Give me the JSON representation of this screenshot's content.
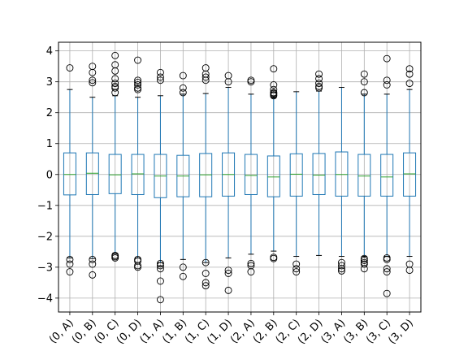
{
  "chart_data": {
    "type": "box",
    "title": "",
    "xlabel": "",
    "ylabel": "",
    "ylim": [
      -4.45,
      4.28
    ],
    "grid": true,
    "y_ticks": [
      {
        "value": 4,
        "label": "4"
      },
      {
        "value": 3,
        "label": "3"
      },
      {
        "value": 2,
        "label": "2"
      },
      {
        "value": 1,
        "label": "1"
      },
      {
        "value": 0,
        "label": "0"
      },
      {
        "value": -1,
        "label": "−1"
      },
      {
        "value": -2,
        "label": "−2"
      },
      {
        "value": -3,
        "label": "−3"
      },
      {
        "value": -4,
        "label": "−4"
      }
    ],
    "colors": {
      "box": "#1f77b4",
      "median": "#2ca02c",
      "grid": "#b0b0b0",
      "flier": "#000000"
    },
    "boxes": [
      {
        "label": "(0, A)",
        "q1": -0.66,
        "median": 0.0,
        "q3": 0.7,
        "whisker_low": -2.7,
        "whisker_high": 2.75,
        "fliers": [
          3.45,
          -2.75,
          -2.9,
          -3.15
        ]
      },
      {
        "label": "(0, B)",
        "q1": -0.65,
        "median": 0.04,
        "q3": 0.7,
        "whisker_low": -2.72,
        "whisker_high": 2.5,
        "fliers": [
          3.5,
          3.3,
          3.05,
          2.97,
          -2.75,
          -2.9,
          -3.25
        ]
      },
      {
        "label": "(0, C)",
        "q1": -0.62,
        "median": -0.01,
        "q3": 0.65,
        "whisker_low": -2.55,
        "whisker_high": 2.55,
        "fliers": [
          3.85,
          3.55,
          3.35,
          3.1,
          2.95,
          2.85,
          2.8,
          2.65,
          -2.62,
          -2.66,
          -2.7
        ]
      },
      {
        "label": "(0, D)",
        "q1": -0.65,
        "median": 0.02,
        "q3": 0.65,
        "whisker_low": -2.7,
        "whisker_high": 2.5,
        "fliers": [
          3.7,
          3.05,
          2.98,
          2.9,
          2.8,
          2.75,
          -2.75,
          -2.8,
          -2.95,
          -3.0
        ]
      },
      {
        "label": "(1, A)",
        "q1": -0.75,
        "median": -0.05,
        "q3": 0.65,
        "whisker_low": -2.85,
        "whisker_high": 2.55,
        "fliers": [
          3.3,
          3.15,
          3.05,
          -2.88,
          -2.95,
          -3.05,
          -3.45,
          -4.05
        ]
      },
      {
        "label": "(1, B)",
        "q1": -0.72,
        "median": -0.05,
        "q3": 0.62,
        "whisker_low": -2.75,
        "whisker_high": 2.6,
        "fliers": [
          3.2,
          2.8,
          2.65,
          -3.0,
          -3.3
        ]
      },
      {
        "label": "(1, C)",
        "q1": -0.72,
        "median": -0.01,
        "q3": 0.68,
        "whisker_low": -2.85,
        "whisker_high": 2.62,
        "fliers": [
          3.45,
          3.25,
          3.15,
          3.05,
          -2.85,
          -3.2,
          -3.5,
          -3.6
        ]
      },
      {
        "label": "(1, D)",
        "q1": -0.7,
        "median": 0.0,
        "q3": 0.7,
        "whisker_low": -2.7,
        "whisker_high": 2.82,
        "fliers": [
          3.2,
          3.0,
          -3.1,
          -3.2,
          -3.75
        ]
      },
      {
        "label": "(2, A)",
        "q1": -0.65,
        "median": -0.03,
        "q3": 0.65,
        "whisker_low": -2.58,
        "whisker_high": 2.6,
        "fliers": [
          3.05,
          3.0,
          -2.88,
          -2.95,
          -3.15
        ]
      },
      {
        "label": "(2, B)",
        "q1": -0.72,
        "median": -0.08,
        "q3": 0.6,
        "whisker_low": -2.48,
        "whisker_high": 2.5,
        "fliers": [
          3.42,
          2.9,
          2.75,
          2.65,
          2.62,
          2.58,
          2.55,
          -2.68,
          -2.72
        ]
      },
      {
        "label": "(2, C)",
        "q1": -0.7,
        "median": 0.01,
        "q3": 0.67,
        "whisker_low": -2.65,
        "whisker_high": 2.68,
        "fliers": [
          -2.9,
          -3.05,
          -3.15
        ]
      },
      {
        "label": "(2, D)",
        "q1": -0.65,
        "median": -0.02,
        "q3": 0.68,
        "whisker_low": -2.62,
        "whisker_high": 2.7,
        "fliers": [
          3.25,
          3.1,
          2.95,
          2.85,
          2.8
        ]
      },
      {
        "label": "(3, A)",
        "q1": -0.7,
        "median": 0.0,
        "q3": 0.73,
        "whisker_low": -2.65,
        "whisker_high": 2.82,
        "fliers": [
          -2.85,
          -2.95,
          -3.05,
          -3.12
        ]
      },
      {
        "label": "(3, B)",
        "q1": -0.7,
        "median": -0.05,
        "q3": 0.65,
        "whisker_low": -2.65,
        "whisker_high": 2.6,
        "fliers": [
          3.25,
          3.0,
          2.65,
          -2.72,
          -2.78,
          -2.85,
          -2.9,
          -3.05
        ]
      },
      {
        "label": "(3, C)",
        "q1": -0.7,
        "median": -0.08,
        "q3": 0.65,
        "whisker_low": -2.65,
        "whisker_high": 2.6,
        "fliers": [
          3.75,
          3.05,
          2.9,
          -2.7,
          -2.75,
          -3.05,
          -3.15,
          -3.85
        ]
      },
      {
        "label": "(3, D)",
        "q1": -0.7,
        "median": 0.02,
        "q3": 0.7,
        "whisker_low": -2.65,
        "whisker_high": 2.75,
        "fliers": [
          3.42,
          3.25,
          2.95,
          -2.9,
          -3.1
        ]
      }
    ]
  }
}
